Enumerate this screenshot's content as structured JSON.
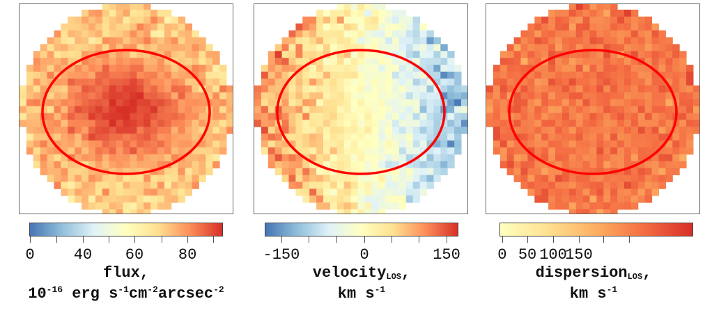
{
  "chart_data": [
    {
      "type": "heatmap",
      "panel": "flux",
      "colormap": [
        "#4575b4",
        "#91bfdb",
        "#e0f3f8",
        "#ffffbf",
        "#fee090",
        "#fc8d59",
        "#d73027"
      ],
      "colorbar": {
        "range": [
          0,
          93
        ],
        "tick_labels": [
          "0",
          "40",
          "60",
          "80"
        ]
      },
      "title_line1": "flux,",
      "title_line2": {
        "base": "10",
        "exp": "-16",
        "rest": " erg s",
        "e2": "-1",
        "cm": "cm",
        "e3": "-2",
        "arc": "arcsec",
        "e4": "-2"
      },
      "model": {
        "peak": 92,
        "edge": 65,
        "noise": 6
      },
      "ellipse_color": "#ff0000"
    },
    {
      "type": "heatmap",
      "panel": "velocity",
      "colormap": [
        "#4575b4",
        "#91bfdb",
        "#e0f3f8",
        "#ffffbf",
        "#fee090",
        "#fc8d59",
        "#d73027"
      ],
      "colorbar": {
        "range": [
          -181,
          171
        ],
        "tick_labels": [
          "-150",
          "0",
          "150"
        ]
      },
      "title_line1": {
        "base": "velocity",
        "sub": "LOS",
        "end": ","
      },
      "title_line2": {
        "base": "km s",
        "exp": "-1"
      },
      "model": {
        "amplitude": 130,
        "noise": 35
      },
      "ellipse_color": "#ff0000"
    },
    {
      "type": "heatmap",
      "panel": "dispersion",
      "colormap": [
        "#ffffbf",
        "#fee090",
        "#fdae61",
        "#f46d43",
        "#d73027"
      ],
      "colorbar": {
        "range": [
          0,
          190
        ],
        "tick_labels": [
          "0",
          "50",
          "100",
          "150"
        ]
      },
      "title_line1": {
        "base": "dispersion",
        "sub": "LOS",
        "end": ","
      },
      "title_line2": {
        "base": "km s",
        "exp": "-1"
      },
      "model": {
        "mean": 135,
        "noise": 15
      },
      "ellipse_color": "#ff0000"
    }
  ]
}
